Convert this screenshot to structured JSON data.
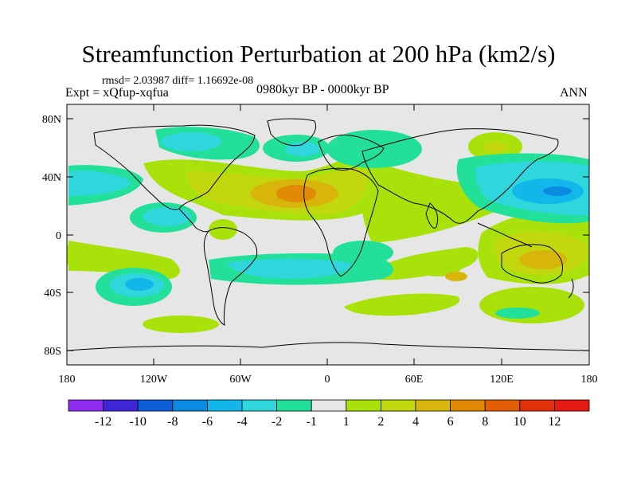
{
  "title": "Streamfunction Perturbation at 200 hPa (km2/s)",
  "stats": "rmsd= 2.03987 diff= 1.16692e-08",
  "experiment": "Expt = xQfup-xqfua",
  "period": "0980kyr BP - 0000kyr BP",
  "season": "ANN",
  "lat_labels": [
    "80N",
    "40N",
    "0",
    "40S",
    "80S"
  ],
  "lon_labels": [
    "180",
    "120W",
    "60W",
    "0",
    "60E",
    "120E",
    "180"
  ],
  "colorbar": {
    "labels": [
      "-12",
      "-10",
      "-8",
      "-6",
      "-4",
      "-2",
      "-1",
      "1",
      "2",
      "4",
      "6",
      "8",
      "10",
      "12"
    ],
    "colors": [
      "#8f2cf0",
      "#3f25d8",
      "#0c5fd9",
      "#0a8ae0",
      "#12b6e8",
      "#2fd6dc",
      "#22e09a",
      "#e6e6e6",
      "#a9e20a",
      "#c2d70d",
      "#d8b50a",
      "#e08a06",
      "#e25e06",
      "#e23008",
      "#e61a12"
    ]
  }
}
